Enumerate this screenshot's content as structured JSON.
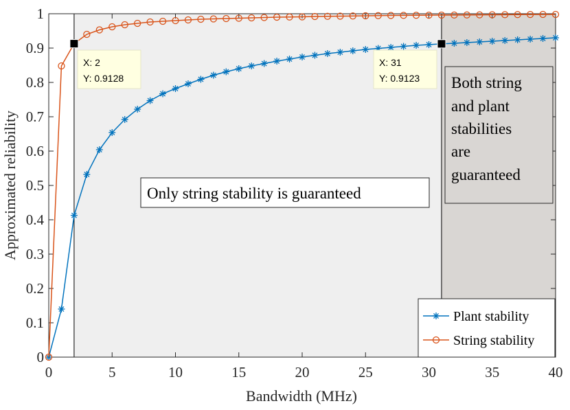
{
  "chart_data": {
    "type": "line",
    "xlabel": "Bandwidth (MHz)",
    "ylabel": "Approximated reliability",
    "xlim": [
      0,
      40
    ],
    "ylim": [
      0,
      1
    ],
    "xticks": [
      0,
      5,
      10,
      15,
      20,
      25,
      30,
      35,
      40
    ],
    "yticks": [
      0,
      0.1,
      0.2,
      0.3,
      0.4,
      0.5,
      0.6,
      0.7,
      0.8,
      0.9,
      1
    ],
    "ytick_labels": [
      "0",
      "0.1",
      "0.2",
      "0.3",
      "0.4",
      "0.5",
      "0.6",
      "0.7",
      "0.8",
      "0.9",
      "1"
    ],
    "x": [
      0,
      1,
      2,
      3,
      4,
      5,
      6,
      7,
      8,
      9,
      10,
      11,
      12,
      13,
      14,
      15,
      16,
      17,
      18,
      19,
      20,
      21,
      22,
      23,
      24,
      25,
      26,
      27,
      28,
      29,
      30,
      31,
      32,
      33,
      34,
      35,
      36,
      37,
      38,
      39,
      40
    ],
    "series": [
      {
        "name": "Plant stability",
        "color": "#0072BD",
        "marker": "asterisk",
        "values": [
          0,
          0.14,
          0.4128,
          0.532,
          0.604,
          0.654,
          0.692,
          0.722,
          0.747,
          0.767,
          0.782,
          0.796,
          0.809,
          0.821,
          0.831,
          0.84,
          0.848,
          0.855,
          0.862,
          0.868,
          0.874,
          0.879,
          0.884,
          0.888,
          0.892,
          0.896,
          0.899,
          0.902,
          0.905,
          0.908,
          0.91,
          0.9123,
          0.914,
          0.916,
          0.918,
          0.92,
          0.922,
          0.924,
          0.926,
          0.928,
          0.93
        ]
      },
      {
        "name": "String stability",
        "color": "#D95319",
        "marker": "circle",
        "values": [
          0,
          0.848,
          0.9128,
          0.94,
          0.953,
          0.962,
          0.968,
          0.972,
          0.976,
          0.978,
          0.98,
          0.982,
          0.984,
          0.985,
          0.986,
          0.987,
          0.988,
          0.989,
          0.99,
          0.9905,
          0.991,
          0.992,
          0.9925,
          0.993,
          0.9935,
          0.994,
          0.9945,
          0.995,
          0.9952,
          0.9955,
          0.9958,
          0.996,
          0.9962,
          0.9965,
          0.9968,
          0.997,
          0.9972,
          0.9975,
          0.9978,
          0.998,
          0.998
        ]
      }
    ],
    "regions": [
      {
        "x_start": 2,
        "x_end": 31,
        "color": "#EFEFEF",
        "label": "Only string stability is guaranteed"
      },
      {
        "x_start": 31,
        "x_end": 40,
        "color": "#D9D6D3",
        "label_lines": [
          "Both string",
          "and plant",
          "stabilities",
          "are",
          "guaranteed"
        ]
      }
    ],
    "datatips": [
      {
        "x": 2,
        "y": 0.9128,
        "x_label": "X: 2",
        "y_label": "Y: 0.9128"
      },
      {
        "x": 31,
        "y": 0.9123,
        "x_label": "X: 31",
        "y_label": "Y: 0.9123"
      }
    ],
    "legend": {
      "position": "bottom-right",
      "entries": [
        "Plant stability",
        "String stability"
      ]
    }
  }
}
